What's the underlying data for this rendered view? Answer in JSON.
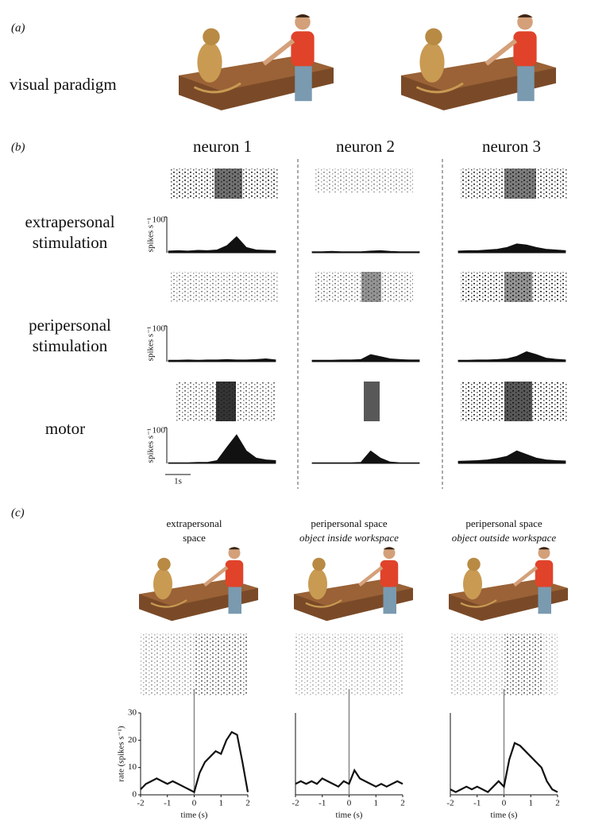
{
  "panel_a": {
    "label": "(a)",
    "caption": "visual paradigm"
  },
  "panel_b": {
    "label": "(b)",
    "neurons": [
      "neuron 1",
      "neuron 2",
      "neuron 3"
    ],
    "conditions": [
      [
        "extrapersonal",
        "stimulation"
      ],
      [
        "peripersonal",
        "stimulation"
      ],
      [
        "motor"
      ]
    ],
    "scale_bar": "1s"
  },
  "panel_c": {
    "label": "(c)"
  },
  "chart_data": [
    {
      "type": "area",
      "values": [
        5,
        6,
        5,
        7,
        6,
        8,
        20,
        45,
        15,
        8,
        7,
        6
      ],
      "ylim": [
        0,
        100
      ],
      "yticks": [
        100
      ],
      "ylabel": "spikes s⁻¹"
    },
    {
      "type": "area",
      "values": [
        3,
        3,
        4,
        3,
        3,
        3,
        5,
        6,
        4,
        3,
        3,
        3
      ],
      "ylim": [
        0,
        100
      ]
    },
    {
      "type": "area",
      "values": [
        5,
        6,
        6,
        8,
        10,
        15,
        25,
        22,
        15,
        10,
        8,
        6
      ],
      "ylim": [
        0,
        100
      ]
    },
    {
      "type": "area",
      "values": [
        4,
        4,
        5,
        4,
        5,
        5,
        6,
        5,
        5,
        6,
        8,
        5
      ],
      "ylim": [
        0,
        100
      ],
      "yticks": [
        100
      ],
      "ylabel": "spikes s⁻¹"
    },
    {
      "type": "area",
      "values": [
        4,
        4,
        4,
        5,
        5,
        6,
        20,
        14,
        8,
        6,
        5,
        5
      ],
      "ylim": [
        0,
        100
      ]
    },
    {
      "type": "area",
      "values": [
        4,
        4,
        5,
        5,
        6,
        8,
        15,
        28,
        20,
        10,
        7,
        5
      ],
      "ylim": [
        0,
        100
      ]
    },
    {
      "type": "area",
      "values": [
        2,
        2,
        2,
        3,
        3,
        8,
        45,
        80,
        35,
        15,
        10,
        8
      ],
      "ylim": [
        0,
        100
      ],
      "yticks": [
        100
      ],
      "ylabel": "spikes s⁻¹"
    },
    {
      "type": "area",
      "values": [
        2,
        2,
        2,
        2,
        2,
        3,
        35,
        15,
        4,
        2,
        2,
        2
      ],
      "ylim": [
        0,
        100
      ]
    },
    {
      "type": "area",
      "values": [
        6,
        7,
        8,
        10,
        14,
        20,
        35,
        25,
        15,
        10,
        8,
        7
      ],
      "ylim": [
        0,
        100
      ]
    },
    {
      "type": "line",
      "title": "extrapersonal",
      "subtitle": "space",
      "x": [
        -2,
        -1.8,
        -1.6,
        -1.4,
        -1.2,
        -1,
        -0.8,
        -0.6,
        -0.4,
        -0.2,
        0,
        0.2,
        0.4,
        0.6,
        0.8,
        1,
        1.2,
        1.4,
        1.6,
        1.8,
        2
      ],
      "values": [
        2,
        4,
        5,
        6,
        5,
        4,
        5,
        4,
        3,
        2,
        1,
        8,
        12,
        14,
        16,
        15,
        20,
        23,
        22,
        12,
        1
      ],
      "xlim": [
        -2,
        2
      ],
      "xticks": [
        -2,
        -1,
        0,
        1,
        2
      ],
      "ylim": [
        0,
        30
      ],
      "yticks": [
        0,
        10,
        20,
        30
      ],
      "ylabel": "rate (spikes s⁻¹)",
      "xlabel": "time (s)",
      "vlines": [
        0
      ]
    },
    {
      "type": "line",
      "title": "peripersonal space",
      "subtitle": "object inside workspace",
      "x": [
        -2,
        -1.8,
        -1.6,
        -1.4,
        -1.2,
        -1,
        -0.8,
        -0.6,
        -0.4,
        -0.2,
        0,
        0.2,
        0.4,
        0.6,
        0.8,
        1,
        1.2,
        1.4,
        1.6,
        1.8,
        2
      ],
      "values": [
        4,
        5,
        4,
        5,
        4,
        6,
        5,
        4,
        3,
        5,
        4,
        9,
        6,
        5,
        4,
        3,
        4,
        3,
        4,
        5,
        4
      ],
      "xlim": [
        -2,
        2
      ],
      "xticks": [
        -2,
        -1,
        0,
        1,
        2
      ],
      "ylim": [
        0,
        30
      ],
      "xlabel": "time (s)",
      "vlines": [
        0
      ]
    },
    {
      "type": "line",
      "title": "peripersonal space",
      "subtitle": "object outside workspace",
      "x": [
        -2,
        -1.8,
        -1.6,
        -1.4,
        -1.2,
        -1,
        -0.8,
        -0.6,
        -0.4,
        -0.2,
        0,
        0.2,
        0.4,
        0.6,
        0.8,
        1,
        1.2,
        1.4,
        1.6,
        1.8,
        2
      ],
      "values": [
        2,
        1,
        2,
        3,
        2,
        3,
        2,
        1,
        3,
        5,
        3,
        13,
        19,
        18,
        16,
        14,
        12,
        10,
        5,
        2,
        1
      ],
      "xlim": [
        -2,
        2
      ],
      "xticks": [
        -2,
        -1,
        0,
        1,
        2
      ],
      "ylim": [
        0,
        30
      ],
      "xlabel": "time (s)",
      "vlines": [
        0
      ]
    }
  ]
}
